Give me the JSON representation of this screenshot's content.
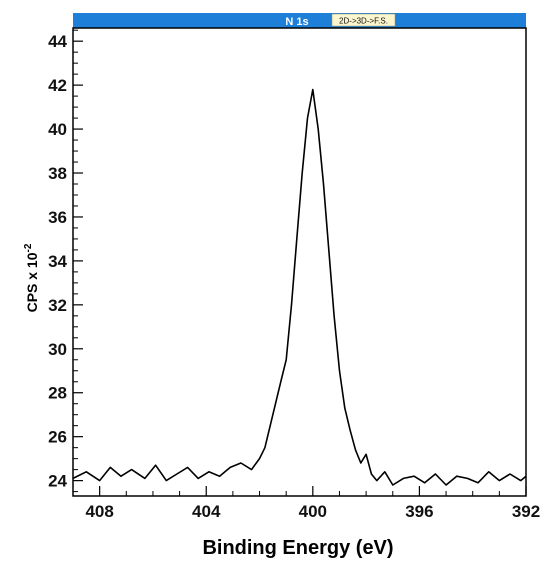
{
  "header": {
    "title": "N 1s",
    "badge": "2D->3D->F.S.",
    "bar_color": "#1e7fd8",
    "badge_color": "#fbf6cf"
  },
  "chart_data": {
    "type": "line",
    "title": "N 1s",
    "xlabel": "Binding Energy (eV)",
    "ylabel": "CPS x 10",
    "ylabel_exp": "-2",
    "x_reversed": true,
    "xlim": [
      409,
      392
    ],
    "ylim": [
      23.3,
      44.6
    ],
    "x_ticks": [
      408,
      404,
      400,
      396,
      392
    ],
    "y_ticks": [
      24,
      26,
      28,
      30,
      32,
      34,
      36,
      38,
      40,
      42,
      44
    ],
    "grid": false,
    "line_color": "#000000",
    "series": [
      {
        "x": [
          409,
          408.5,
          408.0,
          407.6,
          407.2,
          406.8,
          406.3,
          405.9,
          405.5,
          405.1,
          404.7,
          404.3,
          403.9,
          403.5,
          403.1,
          402.7,
          402.3,
          402.0,
          401.8,
          401.6,
          401.4,
          401.2,
          401.0,
          400.8,
          400.6,
          400.4,
          400.2,
          400.0,
          399.8,
          399.6,
          399.4,
          399.2,
          399.0,
          398.8,
          398.6,
          398.4,
          398.2,
          398.0,
          397.8,
          397.6,
          397.3,
          397.0,
          396.6,
          396.2,
          395.8,
          395.4,
          395.0,
          394.6,
          394.2,
          393.8,
          393.4,
          393.0,
          392.6,
          392.2,
          392.0
        ],
        "y": [
          24.1,
          24.4,
          24.0,
          24.6,
          24.2,
          24.5,
          24.1,
          24.7,
          24.0,
          24.3,
          24.6,
          24.1,
          24.4,
          24.2,
          24.6,
          24.8,
          24.5,
          25.0,
          25.5,
          26.5,
          27.5,
          28.5,
          29.5,
          32.0,
          35.0,
          38.0,
          40.5,
          41.8,
          40.0,
          37.5,
          34.5,
          31.5,
          29.0,
          27.3,
          26.3,
          25.4,
          24.8,
          25.2,
          24.3,
          24.0,
          24.4,
          23.8,
          24.1,
          24.2,
          23.9,
          24.3,
          23.8,
          24.2,
          24.1,
          23.9,
          24.4,
          24.0,
          24.3,
          24.0,
          24.2
        ]
      }
    ]
  }
}
